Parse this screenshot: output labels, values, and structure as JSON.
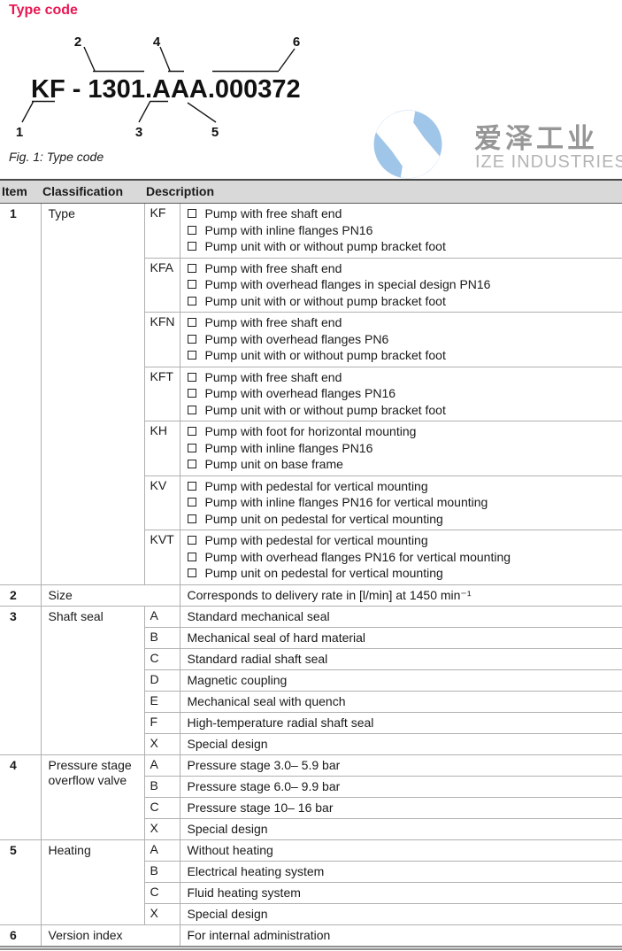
{
  "title": "Type code",
  "figure_caption": "Fig. 1: Type code",
  "diagram": {
    "code": "KF - 1301.AAA.000372",
    "callouts_top": [
      "2",
      "4",
      "6"
    ],
    "callouts_bottom": [
      "1",
      "3",
      "5"
    ]
  },
  "watermark": {
    "chinese": "爱泽工业",
    "english": "IZE INDUSTRIES"
  },
  "colors": {
    "title_red": "#e81752",
    "logo_blue": "#9fc5e8",
    "header_gray": "#d9d9d9",
    "grid_gray": "#b0b0b0"
  },
  "table": {
    "headers": [
      "Item",
      "Classification",
      "Description"
    ],
    "rows": [
      {
        "item": "1",
        "classification": "Type",
        "groups": [
          {
            "code": "KF",
            "bullets": [
              "Pump with free shaft end",
              "Pump with inline flanges PN16",
              "Pump unit with or without pump bracket foot"
            ]
          },
          {
            "code": "KFA",
            "bullets": [
              "Pump with free shaft end",
              "Pump with overhead flanges in special design PN16",
              "Pump unit with or without pump bracket foot"
            ]
          },
          {
            "code": "KFN",
            "bullets": [
              "Pump with free shaft end",
              "Pump with overhead flanges PN6",
              "Pump unit with or without pump bracket foot"
            ]
          },
          {
            "code": "KFT",
            "bullets": [
              "Pump with free shaft end",
              "Pump with overhead flanges PN16",
              "Pump unit with or without pump bracket foot"
            ]
          },
          {
            "code": "KH",
            "bullets": [
              "Pump with foot for horizontal mounting",
              "Pump with inline flanges PN16",
              "Pump unit on base frame"
            ]
          },
          {
            "code": "KV",
            "bullets": [
              "Pump with pedestal for vertical mounting",
              "Pump with inline flanges PN16 for vertical mounting",
              "Pump unit on pedestal for vertical mounting"
            ]
          },
          {
            "code": "KVT",
            "bullets": [
              "Pump with pedestal for vertical mounting",
              "Pump with overhead flanges PN16 for vertical mounting",
              "Pump unit on pedestal for vertical mounting"
            ]
          }
        ]
      },
      {
        "item": "2",
        "classification": "Size",
        "description": "Corresponds to delivery rate in [l/min] at 1450 min⁻¹"
      },
      {
        "item": "3",
        "classification": "Shaft seal",
        "options": [
          {
            "code": "A",
            "text": "Standard mechanical seal"
          },
          {
            "code": "B",
            "text": "Mechanical seal of hard material"
          },
          {
            "code": "C",
            "text": "Standard radial shaft seal"
          },
          {
            "code": "D",
            "text": "Magnetic coupling"
          },
          {
            "code": "E",
            "text": "Mechanical seal with quench"
          },
          {
            "code": "F",
            "text": "High-temperature radial shaft seal"
          },
          {
            "code": "X",
            "text": "Special design"
          }
        ]
      },
      {
        "item": "4",
        "classification": "Pressure stage overflow valve",
        "options": [
          {
            "code": "A",
            "text": "Pressure stage 3.0– 5.9 bar"
          },
          {
            "code": "B",
            "text": "Pressure stage 6.0– 9.9 bar"
          },
          {
            "code": "C",
            "text": "Pressure stage 10– 16 bar"
          },
          {
            "code": "X",
            "text": "Special design"
          }
        ]
      },
      {
        "item": "5",
        "classification": "Heating",
        "options": [
          {
            "code": "A",
            "text": "Without heating"
          },
          {
            "code": "B",
            "text": "Electrical heating system"
          },
          {
            "code": "C",
            "text": "Fluid heating system"
          },
          {
            "code": "X",
            "text": "Special design"
          }
        ]
      },
      {
        "item": "6",
        "classification": "Version index",
        "description": "For internal administration"
      }
    ]
  }
}
